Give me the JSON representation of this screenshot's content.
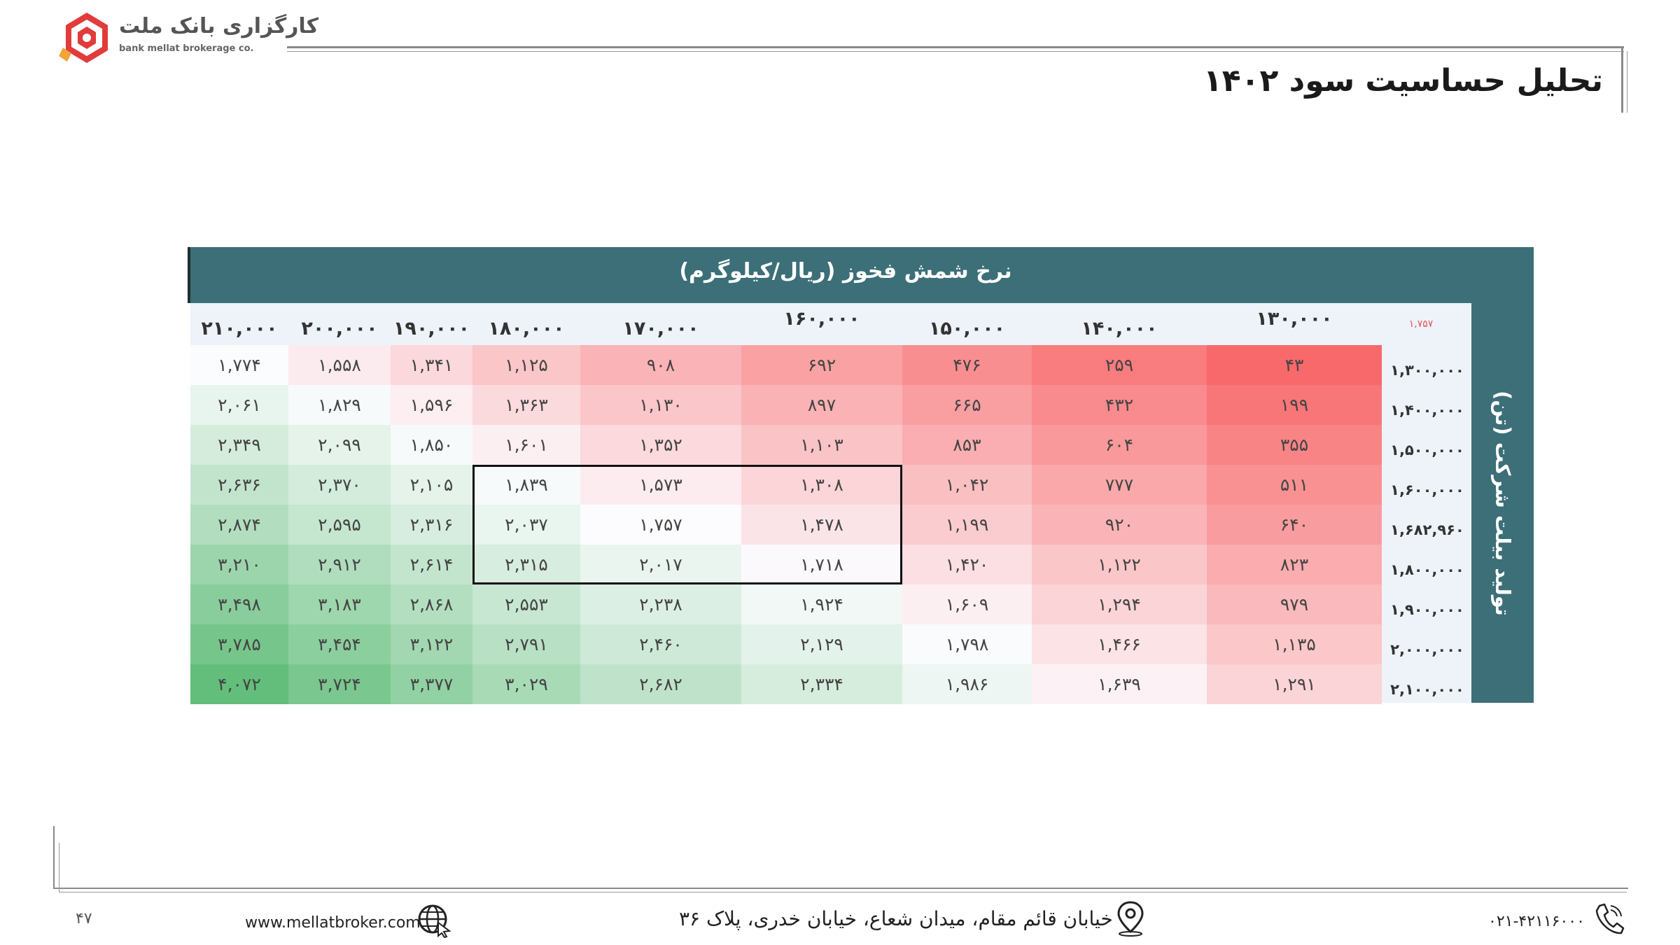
{
  "header": {
    "logo_fa": "کارگزاری بانک ملت",
    "logo_en": "bank mellat brokerage co.",
    "title": "تحلیل حساسیت سود ۱۴۰۲"
  },
  "table": {
    "top_title": "نرخ شمش فخوز (ریال/کیلوگرم)",
    "side_title": "تولید بیلت شرکت (تن)",
    "corner_value": "۱,۷۵۷",
    "col_headers": [
      "۲۱۰,۰۰۰",
      "۲۰۰,۰۰۰",
      "۱۹۰,۰۰۰",
      "۱۸۰,۰۰۰",
      "۱۷۰,۰۰۰",
      "۱۶۰,۰۰۰",
      "۱۵۰,۰۰۰",
      "۱۴۰,۰۰۰",
      "۱۳۰,۰۰۰"
    ],
    "row_headers": [
      "۱,۳۰۰,۰۰۰",
      "۱,۴۰۰,۰۰۰",
      "۱,۵۰۰,۰۰۰",
      "۱,۶۰۰,۰۰۰",
      "۱,۶۸۲,۹۶۰",
      "۱,۸۰۰,۰۰۰",
      "۱,۹۰۰,۰۰۰",
      "۲,۰۰۰,۰۰۰",
      "۲,۱۰۰,۰۰۰"
    ],
    "rows": [
      [
        "۱,۷۷۴",
        "۱,۵۵۸",
        "۱,۳۴۱",
        "۱,۱۲۵",
        "۹۰۸",
        "۶۹۲",
        "۴۷۶",
        "۲۵۹",
        "۴۳"
      ],
      [
        "۲,۰۶۱",
        "۱,۸۲۹",
        "۱,۵۹۶",
        "۱,۳۶۳",
        "۱,۱۳۰",
        "۸۹۷",
        "۶۶۵",
        "۴۳۲",
        "۱۹۹"
      ],
      [
        "۲,۳۴۹",
        "۲,۰۹۹",
        "۱,۸۵۰",
        "۱,۶۰۱",
        "۱,۳۵۲",
        "۱,۱۰۳",
        "۸۵۳",
        "۶۰۴",
        "۳۵۵"
      ],
      [
        "۲,۶۳۶",
        "۲,۳۷۰",
        "۲,۱۰۵",
        "۱,۸۳۹",
        "۱,۵۷۳",
        "۱,۳۰۸",
        "۱,۰۴۲",
        "۷۷۷",
        "۵۱۱"
      ],
      [
        "۲,۸۷۴",
        "۲,۵۹۵",
        "۲,۳۱۶",
        "۲,۰۳۷",
        "۱,۷۵۷",
        "۱,۴۷۸",
        "۱,۱۹۹",
        "۹۲۰",
        "۶۴۰"
      ],
      [
        "۳,۲۱۰",
        "۲,۹۱۲",
        "۲,۶۱۴",
        "۲,۳۱۵",
        "۲,۰۱۷",
        "۱,۷۱۸",
        "۱,۴۲۰",
        "۱,۱۲۲",
        "۸۲۳"
      ],
      [
        "۳,۴۹۸",
        "۳,۱۸۳",
        "۲,۸۶۸",
        "۲,۵۵۳",
        "۲,۲۳۸",
        "۱,۹۲۴",
        "۱,۶۰۹",
        "۱,۲۹۴",
        "۹۷۹"
      ],
      [
        "۳,۷۸۵",
        "۳,۴۵۴",
        "۳,۱۲۲",
        "۲,۷۹۱",
        "۲,۴۶۰",
        "۲,۱۲۹",
        "۱,۷۹۸",
        "۱,۴۶۶",
        "۱,۱۳۵"
      ],
      [
        "۴,۰۷۲",
        "۳,۷۲۴",
        "۳,۳۷۷",
        "۳,۰۲۹",
        "۲,۶۸۲",
        "۲,۳۳۴",
        "۱,۹۸۶",
        "۱,۶۳۹",
        "۱,۲۹۱"
      ]
    ],
    "values_numeric": [
      [
        1774,
        1558,
        1341,
        1125,
        908,
        692,
        476,
        259,
        43
      ],
      [
        2061,
        1829,
        1596,
        1363,
        1130,
        897,
        665,
        432,
        199
      ],
      [
        2349,
        2099,
        1850,
        1601,
        1352,
        1103,
        853,
        604,
        355
      ],
      [
        2636,
        2370,
        2105,
        1839,
        1573,
        1308,
        1042,
        777,
        511
      ],
      [
        2874,
        2595,
        2316,
        2037,
        1757,
        1478,
        1199,
        920,
        640
      ],
      [
        3210,
        2912,
        2614,
        2315,
        2017,
        1718,
        1420,
        1122,
        823
      ],
      [
        3498,
        3183,
        2868,
        2553,
        2238,
        1924,
        1609,
        1294,
        979
      ],
      [
        3785,
        3454,
        3122,
        2791,
        2460,
        2129,
        1798,
        1466,
        1135
      ],
      [
        4072,
        3724,
        3377,
        3029,
        2682,
        2334,
        1986,
        1639,
        1291
      ]
    ],
    "colors": {
      "teal": "#3c6f78",
      "low": "#f8696b",
      "mid": "#fcfcff",
      "high": "#63be7b",
      "midpoint_value": 1757
    }
  },
  "footer": {
    "page_number": "۴۷",
    "website": "www.mellatbroker.com",
    "address": "خیابان قائم مقام، میدان شعاع، خیابان خدری، پلاک ۳۶",
    "phone": "۰۲۱-۴۲۱۱۶۰۰۰",
    "icons": [
      "globe-icon",
      "location-pin-icon",
      "phone-icon"
    ]
  }
}
